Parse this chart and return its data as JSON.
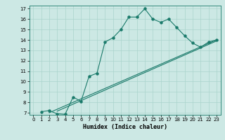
{
  "title": "",
  "xlabel": "Humidex (Indice chaleur)",
  "bg_color": "#cce8e4",
  "grid_color": "#aad4cc",
  "line_color": "#1a7a6a",
  "xlim": [
    -0.5,
    23.5
  ],
  "ylim": [
    6.8,
    17.3
  ],
  "xticks": [
    0,
    1,
    2,
    3,
    4,
    5,
    6,
    7,
    8,
    9,
    10,
    11,
    12,
    13,
    14,
    15,
    16,
    17,
    18,
    19,
    20,
    21,
    22,
    23
  ],
  "yticks": [
    7,
    8,
    9,
    10,
    11,
    12,
    13,
    14,
    15,
    16,
    17
  ],
  "curve1_x": [
    1,
    2,
    3,
    4,
    5,
    6,
    7,
    8,
    9,
    10,
    11,
    12,
    13,
    14,
    15,
    16,
    17,
    18,
    19,
    20,
    21,
    22,
    23
  ],
  "curve1_y": [
    7.1,
    7.2,
    6.9,
    6.85,
    8.5,
    8.1,
    10.5,
    10.8,
    13.8,
    14.2,
    15.0,
    16.2,
    16.2,
    17.0,
    16.0,
    15.7,
    16.0,
    15.2,
    14.4,
    13.7,
    13.3,
    13.8,
    14.0
  ],
  "curve2_x": [
    2,
    23
  ],
  "curve2_y": [
    7.0,
    14.0
  ],
  "curve3_x": [
    3,
    23
  ],
  "curve3_y": [
    7.15,
    13.9
  ]
}
